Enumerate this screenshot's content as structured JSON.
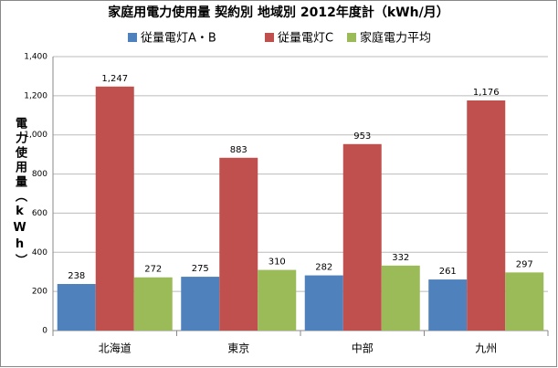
{
  "chart_data": {
    "type": "bar",
    "title": "家庭用電力使用量 契約別 地域別 2012年度計（kWh/月）",
    "y_label": "電力使用量（kWh）",
    "categories": [
      "北海道",
      "東京",
      "中部",
      "九州"
    ],
    "series": [
      {
        "name": "従量電灯A・B",
        "color": "#4f81bd",
        "values": [
          238,
          275,
          282,
          261
        ]
      },
      {
        "name": "従量電灯C",
        "color": "#c0504d",
        "values": [
          1247,
          883,
          953,
          1176
        ],
        "value_labels": [
          "1,247",
          "883",
          "953",
          "1,176"
        ]
      },
      {
        "name": "家庭電力平均",
        "color": "#9bbb59",
        "values": [
          272,
          310,
          332,
          297
        ]
      }
    ],
    "ylim": [
      0,
      1400
    ],
    "yticks": [
      0,
      200,
      400,
      600,
      800,
      {
        "value": 1000,
        "label": "1,000"
      },
      {
        "value": 1200,
        "label": "1,200"
      },
      {
        "value": 1400,
        "label": "1,400"
      }
    ],
    "grid": true,
    "legend": "top"
  }
}
